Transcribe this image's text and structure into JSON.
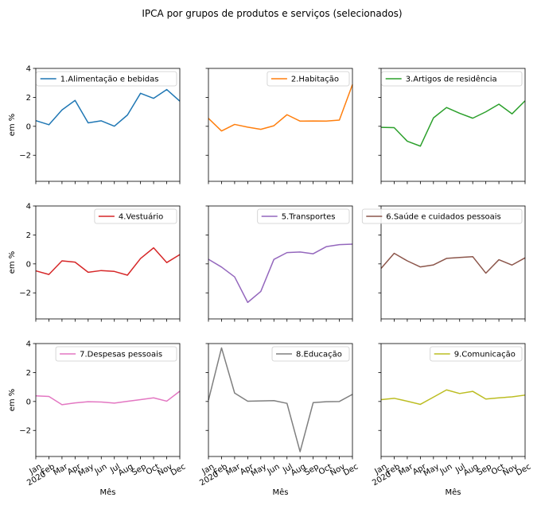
{
  "title": "IPCA por grupos de produtos e serviços (selecionados)",
  "y_ticks": [
    "4",
    "2",
    "0",
    "−2"
  ],
  "y_tick_values": [
    4,
    2,
    0,
    -2
  ],
  "x_tick_labels": [
    "Jan\n2020",
    "Feb",
    "Mar",
    "Apr",
    "May",
    "Jun",
    "Jul",
    "Aug",
    "Sep",
    "Oct",
    "Nov",
    "Dec"
  ],
  "xlabel": "Mês",
  "ylabel": "em %",
  "chart_data": [
    {
      "type": "line",
      "legend": "1.Alimentação e bebidas",
      "color": "#1f77b4",
      "legend_loc": "upper right",
      "ylim": [
        -3.8,
        4
      ],
      "x": [
        "2020-01",
        "2020-02",
        "2020-03",
        "2020-04",
        "2020-05",
        "2020-06",
        "2020-07",
        "2020-08",
        "2020-09",
        "2020-10",
        "2020-11",
        "2020-12"
      ],
      "values": [
        0.39,
        0.11,
        1.13,
        1.79,
        0.24,
        0.38,
        0.01,
        0.78,
        2.28,
        1.93,
        2.54,
        1.74
      ]
    },
    {
      "type": "line",
      "legend": "2.Habitação",
      "color": "#ff7f0e",
      "legend_loc": "upper right",
      "ylim": [
        -3.8,
        4
      ],
      "x": [
        "2020-01",
        "2020-02",
        "2020-03",
        "2020-04",
        "2020-05",
        "2020-06",
        "2020-07",
        "2020-08",
        "2020-09",
        "2020-10",
        "2020-11",
        "2020-12"
      ],
      "values": [
        0.55,
        -0.32,
        0.13,
        -0.06,
        -0.21,
        0.04,
        0.8,
        0.36,
        0.37,
        0.36,
        0.43,
        2.88
      ]
    },
    {
      "type": "line",
      "legend": "3.Artigos de residência",
      "color": "#2ca02c",
      "legend_loc": "upper right",
      "ylim": [
        -3.8,
        4
      ],
      "x": [
        "2020-01",
        "2020-02",
        "2020-03",
        "2020-04",
        "2020-05",
        "2020-06",
        "2020-07",
        "2020-08",
        "2020-09",
        "2020-10",
        "2020-11",
        "2020-12"
      ],
      "values": [
        -0.07,
        -0.09,
        -1.03,
        -1.37,
        0.58,
        1.3,
        0.9,
        0.56,
        1.0,
        1.53,
        0.86,
        1.76
      ]
    },
    {
      "type": "line",
      "legend": "4.Vestuário",
      "color": "#d62728",
      "legend_loc": "upper right",
      "ylim": [
        -3.8,
        4
      ],
      "x": [
        "2020-01",
        "2020-02",
        "2020-03",
        "2020-04",
        "2020-05",
        "2020-06",
        "2020-07",
        "2020-08",
        "2020-09",
        "2020-10",
        "2020-11",
        "2020-12"
      ],
      "values": [
        -0.48,
        -0.73,
        0.21,
        0.12,
        -0.58,
        -0.46,
        -0.52,
        -0.78,
        0.37,
        1.11,
        0.09,
        0.64
      ]
    },
    {
      "type": "line",
      "legend": "5.Transportes",
      "color": "#9467bd",
      "legend_loc": "upper right",
      "ylim": [
        -3.8,
        4
      ],
      "x": [
        "2020-01",
        "2020-02",
        "2020-03",
        "2020-04",
        "2020-05",
        "2020-06",
        "2020-07",
        "2020-08",
        "2020-09",
        "2020-10",
        "2020-11",
        "2020-12"
      ],
      "values": [
        0.32,
        -0.22,
        -0.9,
        -2.66,
        -1.9,
        0.31,
        0.78,
        0.82,
        0.7,
        1.19,
        1.33,
        1.36
      ]
    },
    {
      "type": "line",
      "legend": "6.Saúde e cuidados pessoais",
      "color": "#8c564b",
      "legend_loc": "upper right",
      "ylim": [
        -3.8,
        4
      ],
      "x": [
        "2020-01",
        "2020-02",
        "2020-03",
        "2020-04",
        "2020-05",
        "2020-06",
        "2020-07",
        "2020-08",
        "2020-09",
        "2020-10",
        "2020-11",
        "2020-12"
      ],
      "values": [
        -0.31,
        0.73,
        0.21,
        -0.21,
        -0.07,
        0.38,
        0.44,
        0.5,
        -0.64,
        0.29,
        -0.08,
        0.42
      ]
    },
    {
      "type": "line",
      "legend": "7.Despesas pessoais",
      "color": "#e377c2",
      "legend_loc": "upper right",
      "ylim": [
        -3.8,
        4
      ],
      "x": [
        "2020-01",
        "2020-02",
        "2020-03",
        "2020-04",
        "2020-05",
        "2020-06",
        "2020-07",
        "2020-08",
        "2020-09",
        "2020-10",
        "2020-11",
        "2020-12"
      ],
      "values": [
        0.39,
        0.35,
        -0.22,
        -0.1,
        -0.02,
        -0.04,
        -0.11,
        0.01,
        0.13,
        0.25,
        0.02,
        0.71
      ]
    },
    {
      "type": "line",
      "legend": "8.Educação",
      "color": "#7f7f7f",
      "legend_loc": "upper right",
      "ylim": [
        -3.8,
        4
      ],
      "x": [
        "2020-01",
        "2020-02",
        "2020-03",
        "2020-04",
        "2020-05",
        "2020-06",
        "2020-07",
        "2020-08",
        "2020-09",
        "2020-10",
        "2020-11",
        "2020-12"
      ],
      "values": [
        0.08,
        3.7,
        0.58,
        0.02,
        0.04,
        0.06,
        -0.13,
        -3.47,
        -0.08,
        -0.02,
        0.0,
        0.49
      ]
    },
    {
      "type": "line",
      "legend": "9.Comunicação",
      "color": "#bcbd22",
      "legend_loc": "upper right",
      "ylim": [
        -3.8,
        4
      ],
      "x": [
        "2020-01",
        "2020-02",
        "2020-03",
        "2020-04",
        "2020-05",
        "2020-06",
        "2020-07",
        "2020-08",
        "2020-09",
        "2020-10",
        "2020-11",
        "2020-12"
      ],
      "values": [
        0.13,
        0.22,
        0.02,
        -0.2,
        0.3,
        0.8,
        0.55,
        0.7,
        0.17,
        0.25,
        0.32,
        0.44
      ]
    }
  ]
}
